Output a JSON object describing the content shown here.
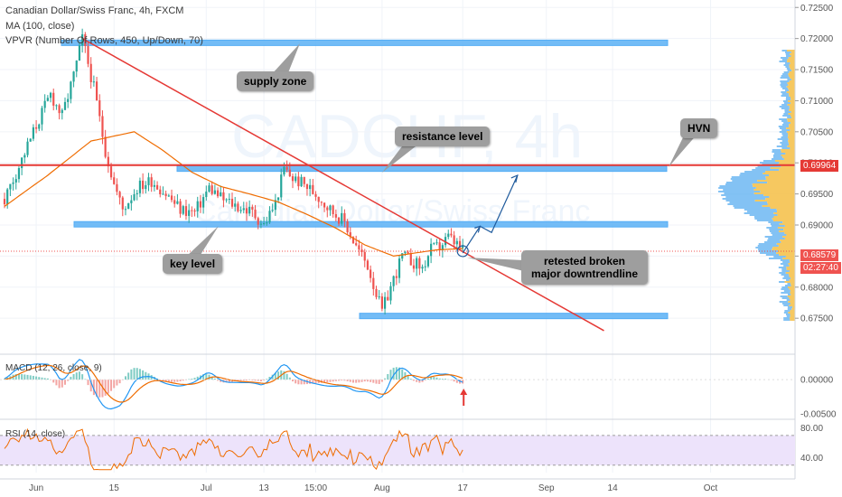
{
  "header": {
    "symbol_line": "Canadian Dollar/Swiss Franc, 4h, FXCM",
    "ma_line": "MA (100, close)",
    "vpvr_line": "VPVR (Number Of Rows, 450, Up/Down, 70)"
  },
  "watermark": {
    "symbol": "CADCHF, 4h",
    "name": "Canadian Dollar/Swiss Franc"
  },
  "annotations": {
    "supply_zone": "supply zone",
    "resistance_level": "resistance level",
    "hvn": "HVN",
    "key_level": "key level",
    "retested_1": "retested broken",
    "retested_2": "major downtrendline"
  },
  "price_tags": {
    "red_level": "0.69964",
    "last_price": "0.68579",
    "countdown": "02:27:40"
  },
  "indicators": {
    "macd_label": "MACD (12, 26, close, 9)",
    "rsi_label": "RSI (14, close)"
  },
  "colors": {
    "up": "#26a69a",
    "down": "#ef5350",
    "zone": "#64b5f6",
    "trendline": "#e53935",
    "level": "#e53935",
    "ma": "#ef6c00",
    "macd": "#2196f3",
    "signal": "#ef6c00",
    "rsi": "#ef6c00",
    "rsi_band": "#ede3fb",
    "vp_up": "#f5c24f",
    "vp_down": "#5aaef0"
  },
  "chart_data": [
    {
      "type": "candlestick",
      "title": "Canadian Dollar/Swiss Franc, 4h, FXCM",
      "x_tick_labels": [
        "Jun",
        "15",
        "Jul",
        "13",
        "15:00",
        "Aug",
        "17",
        "Sep",
        "14",
        "Oct"
      ],
      "y_tick_labels": [
        "0.72500",
        "0.72000",
        "0.71500",
        "0.71000",
        "0.70500",
        "0.70000",
        "0.69500",
        "0.69000",
        "0.68500",
        "0.68000",
        "0.67500"
      ],
      "ylim": [
        0.6695,
        0.7262
      ],
      "close_path": [
        [
          0,
          0.6942
        ],
        [
          6,
          0.7005
        ],
        [
          11,
          0.706
        ],
        [
          16,
          0.711
        ],
        [
          20,
          0.7075
        ],
        [
          24,
          0.714
        ],
        [
          27,
          0.72
        ],
        [
          31,
          0.712
        ],
        [
          35,
          0.702
        ],
        [
          38,
          0.6965
        ],
        [
          41,
          0.6925
        ],
        [
          46,
          0.696
        ],
        [
          51,
          0.6972
        ],
        [
          56,
          0.695
        ],
        [
          61,
          0.6925
        ],
        [
          66,
          0.692
        ],
        [
          71,
          0.696
        ],
        [
          76,
          0.694
        ],
        [
          81,
          0.693
        ],
        [
          86,
          0.692
        ],
        [
          90,
          0.69
        ],
        [
          94,
          0.6935
        ],
        [
          97,
          0.699
        ],
        [
          100,
          0.6975
        ],
        [
          104,
          0.6965
        ],
        [
          108,
          0.695
        ],
        [
          113,
          0.6925
        ],
        [
          118,
          0.6905
        ],
        [
          122,
          0.6865
        ],
        [
          126,
          0.6835
        ],
        [
          129,
          0.679
        ],
        [
          131,
          0.676
        ],
        [
          134,
          0.68
        ],
        [
          138,
          0.685
        ],
        [
          142,
          0.684
        ],
        [
          145,
          0.683
        ],
        [
          148,
          0.686
        ],
        [
          151,
          0.6865
        ],
        [
          154,
          0.688
        ],
        [
          157,
          0.6868
        ],
        [
          159,
          0.6858
        ]
      ],
      "ma_100_path": [
        [
          0,
          0.693
        ],
        [
          15,
          0.698
        ],
        [
          30,
          0.7035
        ],
        [
          45,
          0.705
        ],
        [
          55,
          0.702
        ],
        [
          65,
          0.6985
        ],
        [
          75,
          0.6962
        ],
        [
          85,
          0.695
        ],
        [
          95,
          0.6937
        ],
        [
          105,
          0.6917
        ],
        [
          115,
          0.6895
        ],
        [
          125,
          0.6868
        ],
        [
          135,
          0.685
        ],
        [
          150,
          0.686
        ],
        [
          159,
          0.6862
        ]
      ],
      "horizontal_level": 0.69964,
      "zones": [
        {
          "label": "supply zone",
          "from": 0.71925,
          "to": 0.71975
        },
        {
          "label": "resistance level",
          "from": 0.69875,
          "to": 0.6995
        },
        {
          "label": "key level",
          "from": 0.6898,
          "to": 0.69055
        },
        {
          "label": "",
          "from": 0.675,
          "to": 0.6758
        }
      ],
      "downtrend_line": {
        "start": 0.72,
        "end": 0.673
      },
      "last_price": 0.68579
    },
    {
      "type": "line",
      "title": "MACD (12, 26, close, 9)",
      "y_tick_labels": [
        "0.00000",
        "-0.00500"
      ],
      "ylim": [
        -0.0055,
        0.0033
      ]
    },
    {
      "type": "line",
      "title": "RSI (14, close)",
      "y_tick_labels": [
        "80.00",
        "40.00"
      ],
      "ylim": [
        20,
        88
      ],
      "band": [
        30,
        70
      ]
    }
  ]
}
